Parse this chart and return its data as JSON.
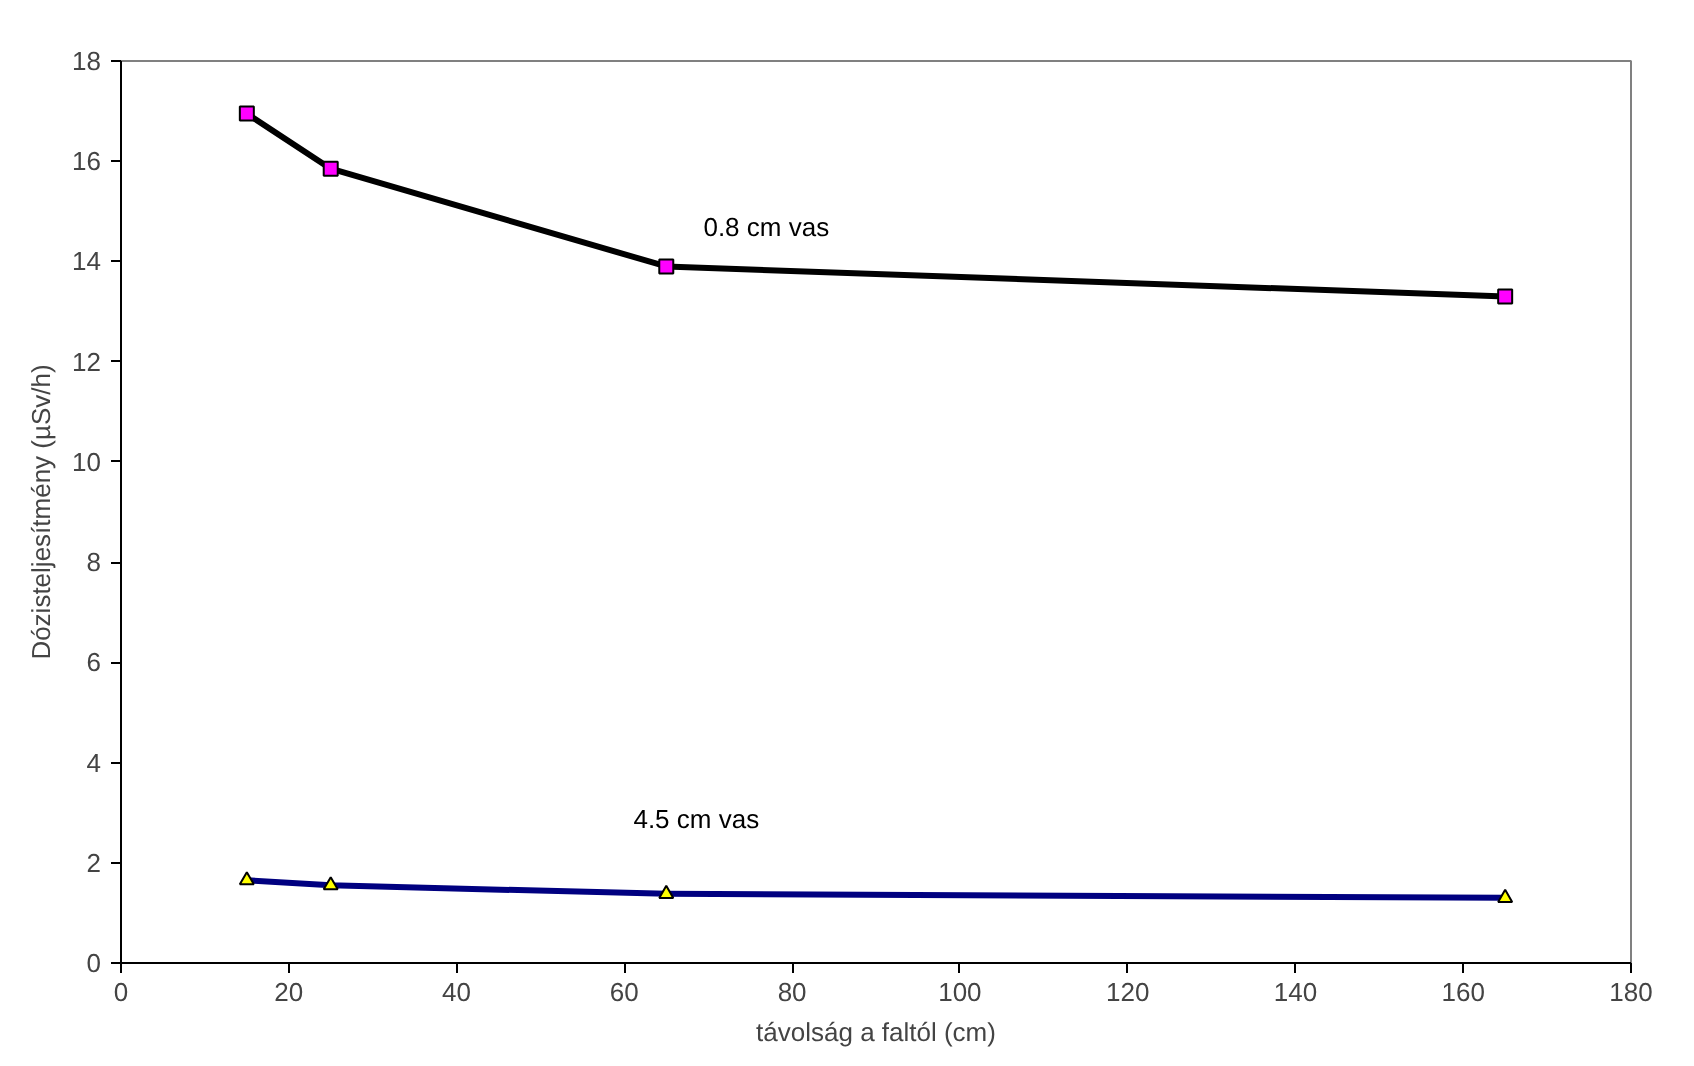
{
  "chart_data": {
    "type": "line",
    "xlabel": "távolság a faltól (cm)",
    "ylabel": "Dózisteljesítmény (µSv/h)",
    "x": [
      15,
      25,
      65,
      165
    ],
    "series": [
      {
        "name": "0.8 cm vas",
        "color": "#000000",
        "values": [
          16.95,
          15.85,
          13.9,
          13.3
        ]
      },
      {
        "type": "scatter",
        "color": "#ff00ff",
        "marker": "square",
        "values": [
          16.95,
          15.85,
          13.9,
          13.3
        ]
      },
      {
        "name": "4.5 cm vas",
        "color": "#000080",
        "values": [
          1.65,
          1.55,
          1.38,
          1.3
        ]
      },
      {
        "type": "scatter",
        "color": "#ffff00",
        "marker": "triangle",
        "values": [
          1.65,
          1.55,
          1.38,
          1.3
        ]
      }
    ],
    "xlim": [
      0,
      180
    ],
    "xticks": [
      0,
      20,
      40,
      60,
      80,
      100,
      120,
      140,
      160,
      180
    ],
    "ylim": [
      0,
      18
    ],
    "yticks": [
      0,
      2,
      4,
      6,
      8,
      10,
      12,
      14,
      16,
      18
    ],
    "grid": false
  }
}
